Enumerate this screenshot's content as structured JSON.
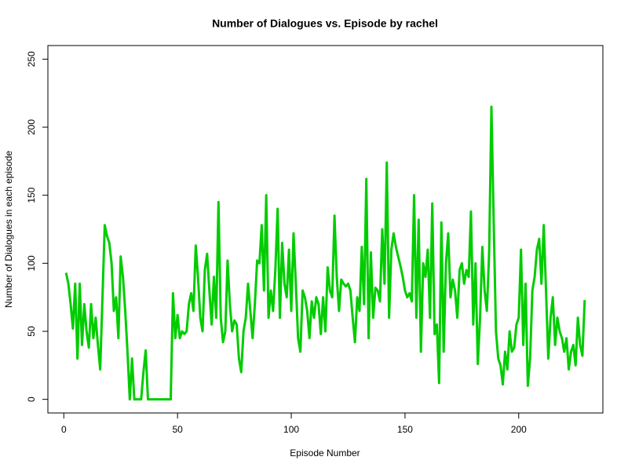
{
  "chart_data": {
    "type": "line",
    "title": "Number of Dialogues vs. Episode by rachel",
    "x_label": "Episode Number",
    "y_label": "Number of Dialogues in each episode",
    "x": [
      1,
      2,
      3,
      4,
      5,
      6,
      7,
      8,
      9,
      10,
      11,
      12,
      13,
      14,
      15,
      16,
      17,
      18,
      19,
      20,
      21,
      22,
      23,
      24,
      25,
      26,
      27,
      28,
      29,
      30,
      31,
      32,
      33,
      34,
      35,
      36,
      37,
      38,
      39,
      40,
      41,
      42,
      43,
      44,
      45,
      46,
      47,
      48,
      49,
      50,
      51,
      52,
      53,
      54,
      55,
      56,
      57,
      58,
      59,
      60,
      61,
      62,
      63,
      64,
      65,
      66,
      67,
      68,
      69,
      70,
      71,
      72,
      73,
      74,
      75,
      76,
      77,
      78,
      79,
      80,
      81,
      82,
      83,
      84,
      85,
      86,
      87,
      88,
      89,
      90,
      91,
      92,
      93,
      94,
      95,
      96,
      97,
      98,
      99,
      100,
      101,
      102,
      103,
      104,
      105,
      106,
      107,
      108,
      109,
      110,
      111,
      112,
      113,
      114,
      115,
      116,
      117,
      118,
      119,
      120,
      121,
      122,
      123,
      124,
      125,
      126,
      127,
      128,
      129,
      130,
      131,
      132,
      133,
      134,
      135,
      136,
      137,
      138,
      139,
      140,
      141,
      142,
      143,
      144,
      145,
      146,
      147,
      148,
      149,
      150,
      151,
      152,
      153,
      154,
      155,
      156,
      157,
      158,
      159,
      160,
      161,
      162,
      163,
      164,
      165,
      166,
      167,
      168,
      169,
      170,
      171,
      172,
      173,
      174,
      175,
      176,
      177,
      178,
      179,
      180,
      181,
      182,
      183,
      184,
      185,
      186,
      187,
      188,
      189,
      190,
      191,
      192,
      193,
      194,
      195,
      196,
      197,
      198,
      199,
      200,
      201,
      202,
      203,
      204,
      205,
      206,
      207,
      208,
      209,
      210,
      211,
      212,
      213,
      214,
      215,
      216,
      217,
      218,
      219,
      220,
      221,
      222,
      223,
      224,
      225,
      226,
      227,
      228,
      229
    ],
    "values": [
      93,
      85,
      70,
      52,
      85,
      30,
      85,
      40,
      70,
      50,
      38,
      70,
      45,
      60,
      40,
      22,
      75,
      128,
      120,
      115,
      100,
      65,
      75,
      45,
      105,
      90,
      65,
      35,
      0,
      30,
      0,
      0,
      0,
      0,
      20,
      36,
      0,
      0,
      0,
      0,
      0,
      0,
      0,
      0,
      0,
      0,
      0,
      78,
      45,
      62,
      45,
      50,
      48,
      50,
      70,
      78,
      65,
      113,
      90,
      60,
      50,
      95,
      107,
      80,
      55,
      90,
      60,
      145,
      60,
      42,
      50,
      102,
      70,
      50,
      58,
      55,
      30,
      20,
      50,
      60,
      85,
      65,
      45,
      70,
      102,
      100,
      128,
      80,
      150,
      60,
      80,
      65,
      95,
      140,
      60,
      115,
      85,
      75,
      110,
      65,
      122,
      85,
      45,
      35,
      80,
      75,
      65,
      45,
      72,
      60,
      75,
      70,
      48,
      75,
      50,
      97,
      80,
      75,
      135,
      90,
      65,
      88,
      85,
      83,
      85,
      80,
      60,
      42,
      75,
      65,
      112,
      70,
      162,
      45,
      108,
      60,
      82,
      80,
      72,
      125,
      85,
      174,
      60,
      110,
      122,
      112,
      105,
      98,
      90,
      80,
      75,
      78,
      72,
      150,
      60,
      132,
      35,
      100,
      90,
      110,
      60,
      144,
      48,
      55,
      12,
      130,
      35,
      100,
      122,
      75,
      88,
      80,
      60,
      95,
      100,
      85,
      95,
      90,
      138,
      55,
      100,
      26,
      60,
      112,
      80,
      65,
      108,
      215,
      130,
      50,
      30,
      25,
      11,
      35,
      22,
      50,
      35,
      38,
      55,
      60,
      110,
      40,
      85,
      10,
      30,
      80,
      90,
      110,
      118,
      85,
      128,
      80,
      30,
      60,
      75,
      40,
      60,
      50,
      45,
      35,
      45,
      22,
      35,
      40,
      25,
      60,
      40,
      32,
      73
    ],
    "color": "#00cc00",
    "xlim": [
      -7,
      237
    ],
    "xticks": [
      0,
      50,
      100,
      150,
      200
    ],
    "ylim": [
      -10,
      260
    ],
    "yticks": [
      0,
      50,
      100,
      150,
      200,
      250
    ]
  }
}
